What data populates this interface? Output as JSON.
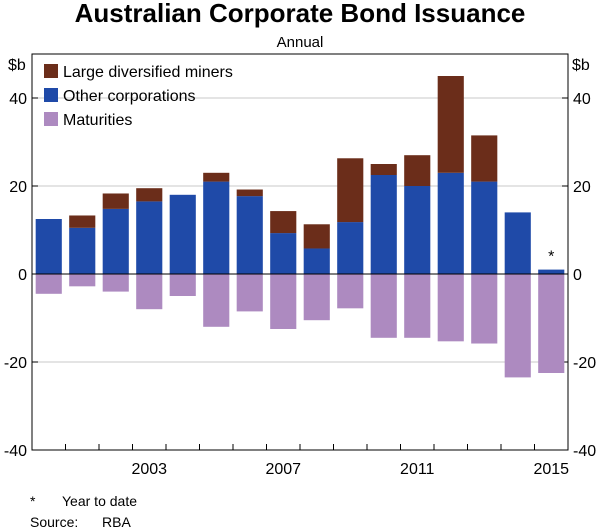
{
  "chart_data": {
    "type": "bar",
    "stacked": true,
    "title": "Australian Corporate Bond Issuance",
    "subtitle": "Annual",
    "ylabel_left": "$b",
    "ylabel_right": "$b",
    "ylim": [
      -40,
      50
    ],
    "yticks": [
      -40,
      -20,
      0,
      20,
      40
    ],
    "x": [
      2000,
      2001,
      2002,
      2003,
      2004,
      2005,
      2006,
      2007,
      2008,
      2009,
      2010,
      2011,
      2012,
      2013,
      2014,
      2015
    ],
    "xtick_labels": [
      "2003",
      "2007",
      "2011",
      "2015"
    ],
    "xtick_years": [
      2003,
      2007,
      2011,
      2015
    ],
    "grid": true,
    "legend_position": "top-left",
    "series": [
      {
        "name": "Large diversified miners",
        "color": "#6b2d1a",
        "values": [
          0,
          2.8,
          3.5,
          3,
          0,
          2,
          1.5,
          5,
          5.5,
          14.5,
          2.5,
          7,
          22,
          10.5,
          0,
          0
        ]
      },
      {
        "name": "Other corporations",
        "color": "#1f4aa8",
        "values": [
          12.5,
          10.5,
          14.8,
          16.5,
          18,
          21,
          17.7,
          9.3,
          5.8,
          11.8,
          22.5,
          20,
          23,
          21,
          14,
          1
        ]
      },
      {
        "name": "Maturities",
        "color": "#ad8ac0",
        "values": [
          -4.5,
          -2.8,
          -4,
          -8,
          -5,
          -12,
          -8.5,
          -12.5,
          -10.5,
          -7.8,
          -14.5,
          -14.5,
          -15.3,
          -15.8,
          -23.5,
          -22.5
        ]
      }
    ],
    "annotations": [
      {
        "x": 2015,
        "text": "*"
      }
    ]
  },
  "notes": {
    "ytd_marker": "*",
    "ytd_text": "Year to date",
    "source_label": "Source:",
    "source_text": "RBA"
  }
}
